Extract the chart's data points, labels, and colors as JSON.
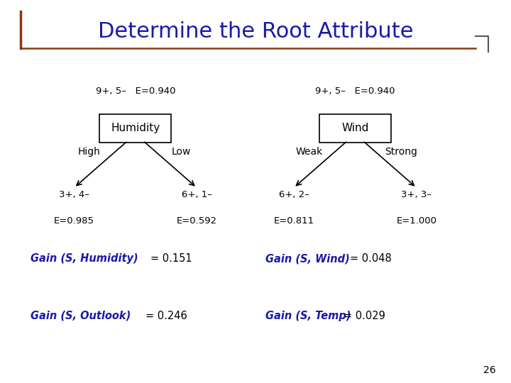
{
  "title": "Determine the Root Attribute",
  "title_color": "#1a1aaa",
  "title_fontsize": 22,
  "background_color": "#ffffff",
  "left_tree": {
    "root_label": "Humidity",
    "root_info": "9+, 5–   E=0.940",
    "branches": [
      "High",
      "Low"
    ],
    "leaves": [
      {
        "label1": "3+, 4–",
        "label2": "E=0.985"
      },
      {
        "label1": "6+, 1–",
        "label2": "E=0.592"
      }
    ],
    "gain_label": "Gain (S, Humidity)",
    "gain_value": "= 0.151"
  },
  "right_tree": {
    "root_label": "Wind",
    "root_info": "9+, 5–   E=0.940",
    "branches": [
      "Weak",
      "Strong"
    ],
    "leaves": [
      {
        "label1": "6+, 2–",
        "label2": "E=0.811"
      },
      {
        "label1": "3+, 3–",
        "label2": "E=1.000"
      }
    ],
    "gain_label": "Gain (S, Wind)",
    "gain_value": "= 0.048"
  },
  "gain_outlook_label": "Gain (S, Outlook)",
  "gain_outlook_value": "= 0.246",
  "gain_temp_label": "Gain (S, Temp)",
  "gain_temp_value": "= 0.029",
  "title_underline_color": "#8B3A0F",
  "bracket_color": "#555555",
  "page_number": "26"
}
